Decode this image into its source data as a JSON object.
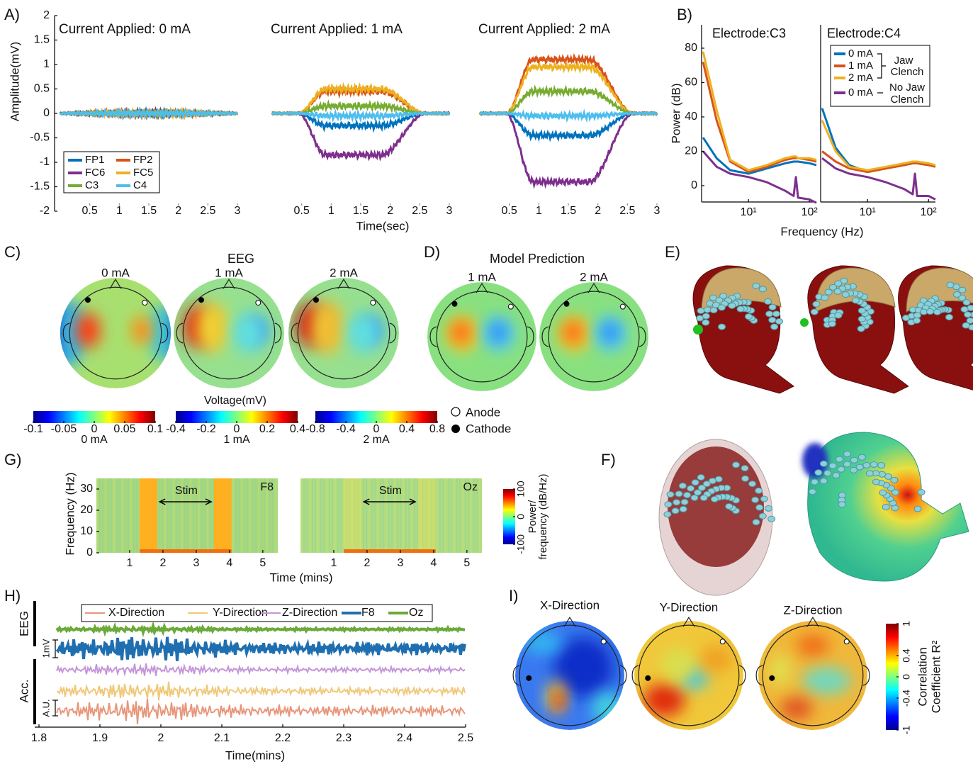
{
  "figure": {
    "A": {
      "label": "A)",
      "ylabel": "Amplitude(mV)",
      "xlabel": "Time(sec)",
      "ylim": [
        -2,
        2
      ],
      "yticks": [
        -2,
        -1.5,
        -1,
        -0.5,
        0,
        0.5,
        1,
        1.5,
        2
      ],
      "xlim": [
        0,
        3
      ],
      "xticks": [
        0.5,
        1,
        1.5,
        2,
        2.5,
        3
      ],
      "titles": [
        "Current Applied: 0 mA",
        "Current Applied: 1 mA",
        "Current Applied: 2 mA"
      ],
      "series": [
        {
          "name": "FP1",
          "color": "#0072bd",
          "levels": [
            0,
            -0.25,
            -0.45
          ]
        },
        {
          "name": "FP2",
          "color": "#d95319",
          "levels": [
            0,
            0.45,
            1.1
          ]
        },
        {
          "name": "FC6",
          "color": "#7e2f8e",
          "levels": [
            0,
            -0.85,
            -1.4
          ]
        },
        {
          "name": "FC5",
          "color": "#edb120",
          "levels": [
            0,
            0.5,
            0.95
          ]
        },
        {
          "name": "C3",
          "color": "#77ac30",
          "levels": [
            0,
            0.15,
            0.45
          ]
        },
        {
          "name": "C4",
          "color": "#4dbeee",
          "levels": [
            0,
            -0.05,
            -0.05
          ]
        }
      ]
    },
    "B": {
      "label": "B)",
      "ylabel": "Power (dB)",
      "xlabel": "Frequency (Hz)",
      "titles": [
        "Electrode:C3",
        "Electrode:C4"
      ],
      "ylim": [
        -9.5,
        93.6
      ],
      "yticks": [
        0,
        20,
        40,
        60,
        80
      ],
      "xlim": [
        1.7,
        130
      ],
      "xticks": [
        {
          "value": 10,
          "label": "10¹"
        },
        {
          "value": 100,
          "label": "10²"
        }
      ],
      "x": [
        1.8,
        3,
        5,
        10,
        20,
        40,
        55,
        60,
        65,
        100,
        130
      ],
      "panels": [
        {
          "series": [
            {
              "name": "0 mA",
              "color": "#0072bd",
              "values": [
                28,
                16,
                9,
                7,
                10,
                13,
                14,
                14,
                14,
                13,
                12
              ]
            },
            {
              "name": "1 mA",
              "color": "#d95319",
              "values": [
                72,
                38,
                14,
                8,
                11,
                15,
                16,
                16,
                16,
                15,
                14
              ]
            },
            {
              "name": "2 mA",
              "color": "#edb120",
              "values": [
                78,
                44,
                15,
                9,
                12,
                16,
                17,
                17,
                16,
                16,
                15
              ]
            },
            {
              "name": "0 mA",
              "color": "#7e2f8e",
              "values": [
                20,
                11,
                7,
                5,
                2,
                -3,
                -6,
                5,
                -7,
                -8,
                -10
              ]
            }
          ]
        },
        {
          "series": [
            {
              "name": "0 mA",
              "color": "#0072bd",
              "values": [
                45,
                22,
                12,
                8,
                10,
                12,
                13,
                13,
                13,
                12,
                12
              ]
            },
            {
              "name": "1 mA",
              "color": "#d95319",
              "values": [
                20,
                14,
                10,
                8,
                10,
                12,
                13,
                13,
                13,
                12,
                11
              ]
            },
            {
              "name": "2 mA",
              "color": "#edb120",
              "values": [
                38,
                20,
                11,
                9,
                11,
                13,
                14,
                14,
                14,
                13,
                12
              ]
            },
            {
              "name": "0 mA",
              "color": "#7e2f8e",
              "values": [
                16,
                10,
                7,
                5,
                2,
                -2,
                -5,
                7,
                -6,
                -6,
                -8
              ]
            }
          ]
        }
      ],
      "jaw_label": [
        "Jaw",
        "Clench"
      ],
      "nojaw_label": [
        "No Jaw",
        "Clench"
      ]
    },
    "C": {
      "label": "C)",
      "title": "EEG",
      "maps": [
        "0 mA",
        "1 mA",
        "2 mA"
      ],
      "colorbar_title": "Voltage(mV)",
      "colorbars": [
        {
          "name": "0 mA",
          "lim": [
            -0.1,
            0.1
          ],
          "ticks": [
            -0.1,
            -0.05,
            0,
            0.05,
            0.1
          ]
        },
        {
          "name": "1 mA",
          "lim": [
            -0.4,
            0.4
          ],
          "ticks": [
            -0.4,
            -0.2,
            0,
            0.2,
            0.4
          ]
        },
        {
          "name": "2 mA",
          "lim": [
            -0.8,
            0.8
          ],
          "ticks": [
            -0.8,
            -0.4,
            0,
            0.4,
            0.8
          ]
        }
      ]
    },
    "D": {
      "label": "D)",
      "title": "Model Prediction",
      "maps": [
        "1 mA",
        "2 mA"
      ],
      "legend": [
        "Anode",
        "Cathode"
      ]
    },
    "E": {
      "label": "E)"
    },
    "F": {
      "label": "F)"
    },
    "G": {
      "label": "G)",
      "ylabel": "Frequency (Hz)",
      "xlabel": "Time (mins)",
      "ylim": [
        0,
        35
      ],
      "yticks": [
        0,
        10,
        20,
        30
      ],
      "xlim": [
        0,
        5.45
      ],
      "xticks": [
        1,
        2,
        3,
        4,
        5
      ],
      "stim": "Stim",
      "ramp_windows": [
        [
          1.3,
          1.83
        ],
        [
          3.53,
          4.06
        ]
      ],
      "channels": [
        "F8",
        "Oz"
      ],
      "colorbar": {
        "lim": [
          -100,
          100
        ],
        "ticks": [
          -100,
          0,
          100
        ],
        "title": [
          "Power/",
          "frequency (dB/Hz)"
        ]
      }
    },
    "H": {
      "label": "H)",
      "xlabel": "Time(mins)",
      "xlim": [
        1.8,
        2.5
      ],
      "xticks": [
        1.8,
        1.9,
        2,
        2.1,
        2.2,
        2.3,
        2.4,
        2.5
      ],
      "legend": [
        {
          "name": "X-Direction",
          "color": "#e8967a"
        },
        {
          "name": "Y-Direction",
          "color": "#f0c878"
        },
        {
          "name": "Z-Direction",
          "color": "#c496d8"
        },
        {
          "name": "F8",
          "color": "#1f6fb0"
        },
        {
          "name": "Oz",
          "color": "#6aaa3a"
        }
      ],
      "scale_labels": [
        "EEG",
        "Acc.",
        "1mV",
        "A.U."
      ]
    },
    "I": {
      "label": "I)",
      "titles": [
        "X-Direction",
        "Y-Direction",
        "Z-Direction"
      ],
      "colorbar": {
        "lim": [
          -1,
          1
        ],
        "ticks": [
          -1,
          -0.4,
          0,
          0.4,
          1
        ],
        "title": [
          "Correlation",
          "Coefficient R²"
        ]
      }
    }
  }
}
